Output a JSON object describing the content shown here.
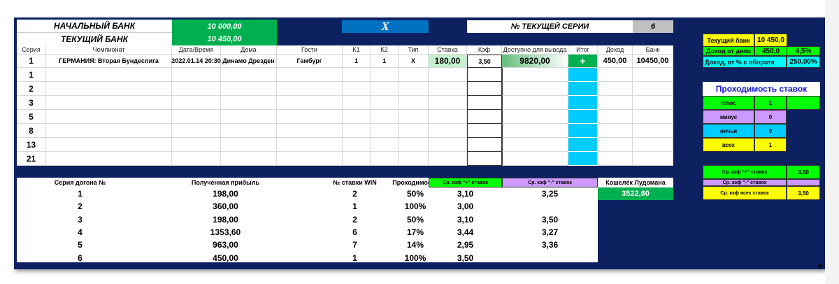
{
  "top": {
    "start_bank_label": "НАЧАЛЬНЫЙ БАНК",
    "start_bank_value": "10 000,00",
    "current_bank_label": "ТЕКУЩИЙ БАНК",
    "current_bank_value": "10 450,00",
    "x_label": "X",
    "series_label": "№ ТЕКУЩЕЙ СЕРИИ",
    "series_value": "6"
  },
  "table": {
    "headers": [
      "Серия",
      "Чемпионат",
      "Дата/Время",
      "Дома",
      "Гости",
      "К1",
      "К2",
      "Тип",
      "Ставка",
      "Кэф",
      "Доступно для вывода",
      "Итог",
      "Доход",
      "Банк"
    ],
    "row1": [
      "1",
      "ГЕРМАНИЯ: Вторая Бундеслига",
      "2022.01.14 20:30",
      "Динамо Дрезден",
      "Гамбург",
      "1",
      "1",
      "X",
      "180,00",
      "3,50",
      "9820,00",
      "+",
      "450,00",
      "10450,00"
    ],
    "series": [
      "1",
      "2",
      "3",
      "5",
      "8",
      "13",
      "21"
    ]
  },
  "summary": {
    "headers": [
      "Серия догона №",
      "Полученная прибыль",
      "№ ставки WIN",
      "Проходимость",
      "Ср. кэф \"+\" ставок",
      "Ср. кэф \"-\" ставок"
    ],
    "rows": [
      [
        "1",
        "198,00",
        "2",
        "50%",
        "3,10",
        "3,25"
      ],
      [
        "2",
        "360,00",
        "1",
        "100%",
        "3,00",
        ""
      ],
      [
        "3",
        "198,00",
        "2",
        "50%",
        "3,10",
        "3,50"
      ],
      [
        "4",
        "1353,60",
        "6",
        "17%",
        "3,44",
        "3,27"
      ],
      [
        "5",
        "963,00",
        "7",
        "14%",
        "2,95",
        "3,36"
      ],
      [
        "6",
        "450,00",
        "1",
        "100%",
        "3,50",
        ""
      ]
    ],
    "wallet_label": "Кошелёк Лудомана",
    "wallet_value": "3522,60"
  },
  "right": {
    "current_bank_label": "Текущий банк",
    "current_bank_value": "10 450,0",
    "income_depo_label": "Доход от депо",
    "income_depo_value": "450,0",
    "income_depo_pct": "4,5%",
    "income_turn_label": "Доход, от % с оборота",
    "income_turn_value": "250,00%",
    "pass_title": "Проходимость ставок",
    "pass": [
      {
        "label": "плюс",
        "value": "1",
        "color": "#00ff00"
      },
      {
        "label": "минус",
        "value": "0",
        "color": "#cc99ff"
      },
      {
        "label": "ничья",
        "value": "0",
        "color": "#00ccff"
      },
      {
        "label": "всех",
        "value": "1",
        "color": "#ffff00"
      }
    ],
    "avg": [
      {
        "label": "Ср. кэф \"+\" ставок",
        "value": "3,50",
        "color": "#00ff00"
      },
      {
        "label": "Ср. кэф \"-\" ставок",
        "value": "",
        "color": "#cc99ff"
      },
      {
        "label": "Ср. кэф всех ставок",
        "value": "3,50",
        "color": "#ffff00"
      }
    ]
  },
  "colors": {
    "background": "#0d2160",
    "green": "#00b050",
    "cyan": "#00ccff",
    "blue": "#0070c0"
  }
}
